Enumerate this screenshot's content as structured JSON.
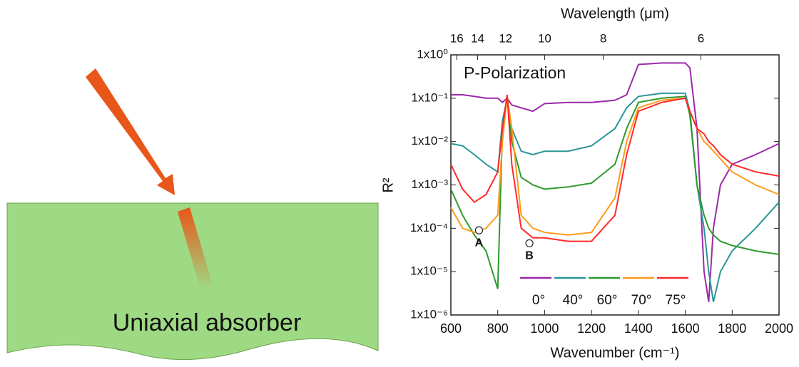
{
  "diagram": {
    "label": "Uniaxial absorber"
  },
  "chart_data": {
    "type": "line",
    "log_y": true,
    "x_label": "Wavenumber (cm⁻¹)",
    "x2_label": "Wavelength (μm)",
    "y_label": "R²",
    "x": [
      600,
      650,
      700,
      750,
      800,
      820,
      840,
      860,
      900,
      950,
      1000,
      1100,
      1200,
      1300,
      1350,
      1400,
      1500,
      1600,
      1620,
      1650,
      1680,
      1700,
      1720,
      1750,
      1800,
      1900,
      2000
    ],
    "series": [
      {
        "name": "0°",
        "color": "#9a2aa8",
        "values": [
          0.12,
          0.12,
          0.11,
          0.1,
          0.1,
          0.08,
          0.1,
          0.07,
          0.06,
          0.05,
          0.075,
          0.08,
          0.08,
          0.09,
          0.12,
          0.6,
          0.65,
          0.65,
          0.5,
          0.02,
          1e-05,
          2e-06,
          0.0001,
          0.001,
          0.003,
          0.005,
          0.009
        ]
      },
      {
        "name": "40°",
        "color": "#2a9598",
        "values": [
          0.009,
          0.008,
          0.005,
          0.003,
          0.002,
          0.03,
          0.1,
          0.02,
          0.006,
          0.005,
          0.006,
          0.006,
          0.008,
          0.02,
          0.06,
          0.11,
          0.13,
          0.13,
          0.05,
          0.001,
          0.0001,
          1e-05,
          2e-06,
          1e-05,
          3e-05,
          0.0001,
          0.0004
        ]
      },
      {
        "name": "60°",
        "color": "#2e9a2e",
        "values": [
          0.0008,
          0.0002,
          7e-05,
          3e-05,
          4e-06,
          0.02,
          0.11,
          0.01,
          0.0015,
          0.001,
          0.0008,
          0.0009,
          0.0011,
          0.003,
          0.02,
          0.08,
          0.1,
          0.11,
          0.04,
          0.001,
          0.0002,
          0.0001,
          7e-05,
          5e-05,
          4e-05,
          3e-05,
          2.5e-05
        ]
      },
      {
        "name": "70°",
        "color": "#ff9a1a",
        "values": [
          0.0003,
          0.0001,
          8e-05,
          0.0001,
          0.0002,
          0.01,
          0.11,
          0.02,
          0.0002,
          0.0001,
          8e-05,
          7e-05,
          8e-05,
          0.0005,
          0.01,
          0.06,
          0.09,
          0.1,
          0.05,
          0.02,
          0.01,
          0.008,
          0.006,
          0.004,
          0.002,
          0.001,
          0.0006
        ]
      },
      {
        "name": "75°",
        "color": "#ff2a2a",
        "values": [
          0.003,
          0.0008,
          0.0004,
          0.0006,
          0.002,
          0.02,
          0.12,
          0.003,
          0.0001,
          6e-05,
          6e-05,
          5e-05,
          5e-05,
          0.0002,
          0.005,
          0.05,
          0.08,
          0.1,
          0.05,
          0.02,
          0.015,
          0.01,
          0.008,
          0.005,
          0.003,
          0.002,
          0.0016
        ]
      }
    ],
    "xlim": [
      600,
      2000
    ],
    "xticks": [
      600,
      800,
      1000,
      1200,
      1400,
      1600,
      1800,
      2000
    ],
    "x2ticks": [
      16,
      14,
      12,
      10,
      8,
      6
    ],
    "ylim": [
      1e-06,
      1
    ],
    "yticks": [
      {
        "value": 1,
        "label": "1x10⁰"
      },
      {
        "value": 0.1,
        "label": "1x10⁻¹"
      },
      {
        "value": 0.01,
        "label": "1x10⁻²"
      },
      {
        "value": 0.001,
        "label": "1x10⁻³"
      },
      {
        "value": 0.0001,
        "label": "1x10⁻⁴"
      },
      {
        "value": 1e-05,
        "label": "1x10⁻⁵"
      },
      {
        "value": 1e-06,
        "label": "1x10⁻⁶"
      }
    ],
    "annotations": [
      {
        "text": "P-Polarization"
      },
      {
        "text": "A",
        "x": 720,
        "y": 9e-05
      },
      {
        "text": "B",
        "x": 935,
        "y": 4.5e-05
      }
    ]
  }
}
